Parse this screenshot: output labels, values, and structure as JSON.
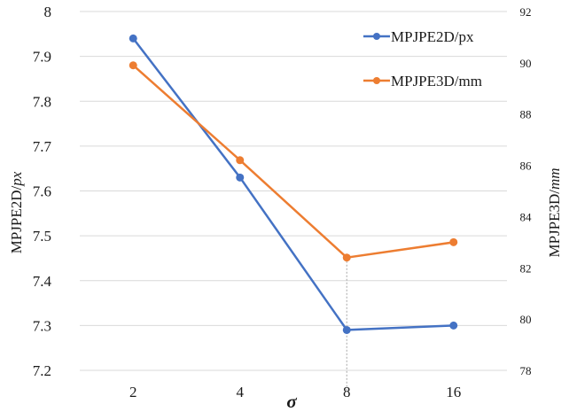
{
  "chart_data": {
    "type": "line",
    "categories": [
      "2",
      "4",
      "8",
      "16"
    ],
    "xlabel": "σ",
    "y_left": {
      "label_main": "MPJPE2D/",
      "label_unit": "px",
      "ylim": [
        7.2,
        8.0
      ],
      "ticks": [
        "7.2",
        "7.3",
        "7.4",
        "7.5",
        "7.6",
        "7.7",
        "7.8",
        "7.9",
        "8"
      ]
    },
    "y_right": {
      "label_main": "MPJPE3D/",
      "label_unit": "mm",
      "ylim": [
        78,
        92
      ],
      "ticks": [
        "78",
        "80",
        "82",
        "84",
        "86",
        "88",
        "90",
        "92"
      ]
    },
    "grid": true,
    "legend_position": "top-right",
    "drop_line_at": "8",
    "series": [
      {
        "name": "MPJPE2D/px",
        "axis": "left",
        "color": "#4472C4",
        "values": [
          7.94,
          7.63,
          7.29,
          7.3
        ]
      },
      {
        "name": "MPJPE3D/mm",
        "axis": "right",
        "color": "#ED7D31",
        "values": [
          89.9,
          86.2,
          82.4,
          83.0
        ]
      }
    ]
  }
}
